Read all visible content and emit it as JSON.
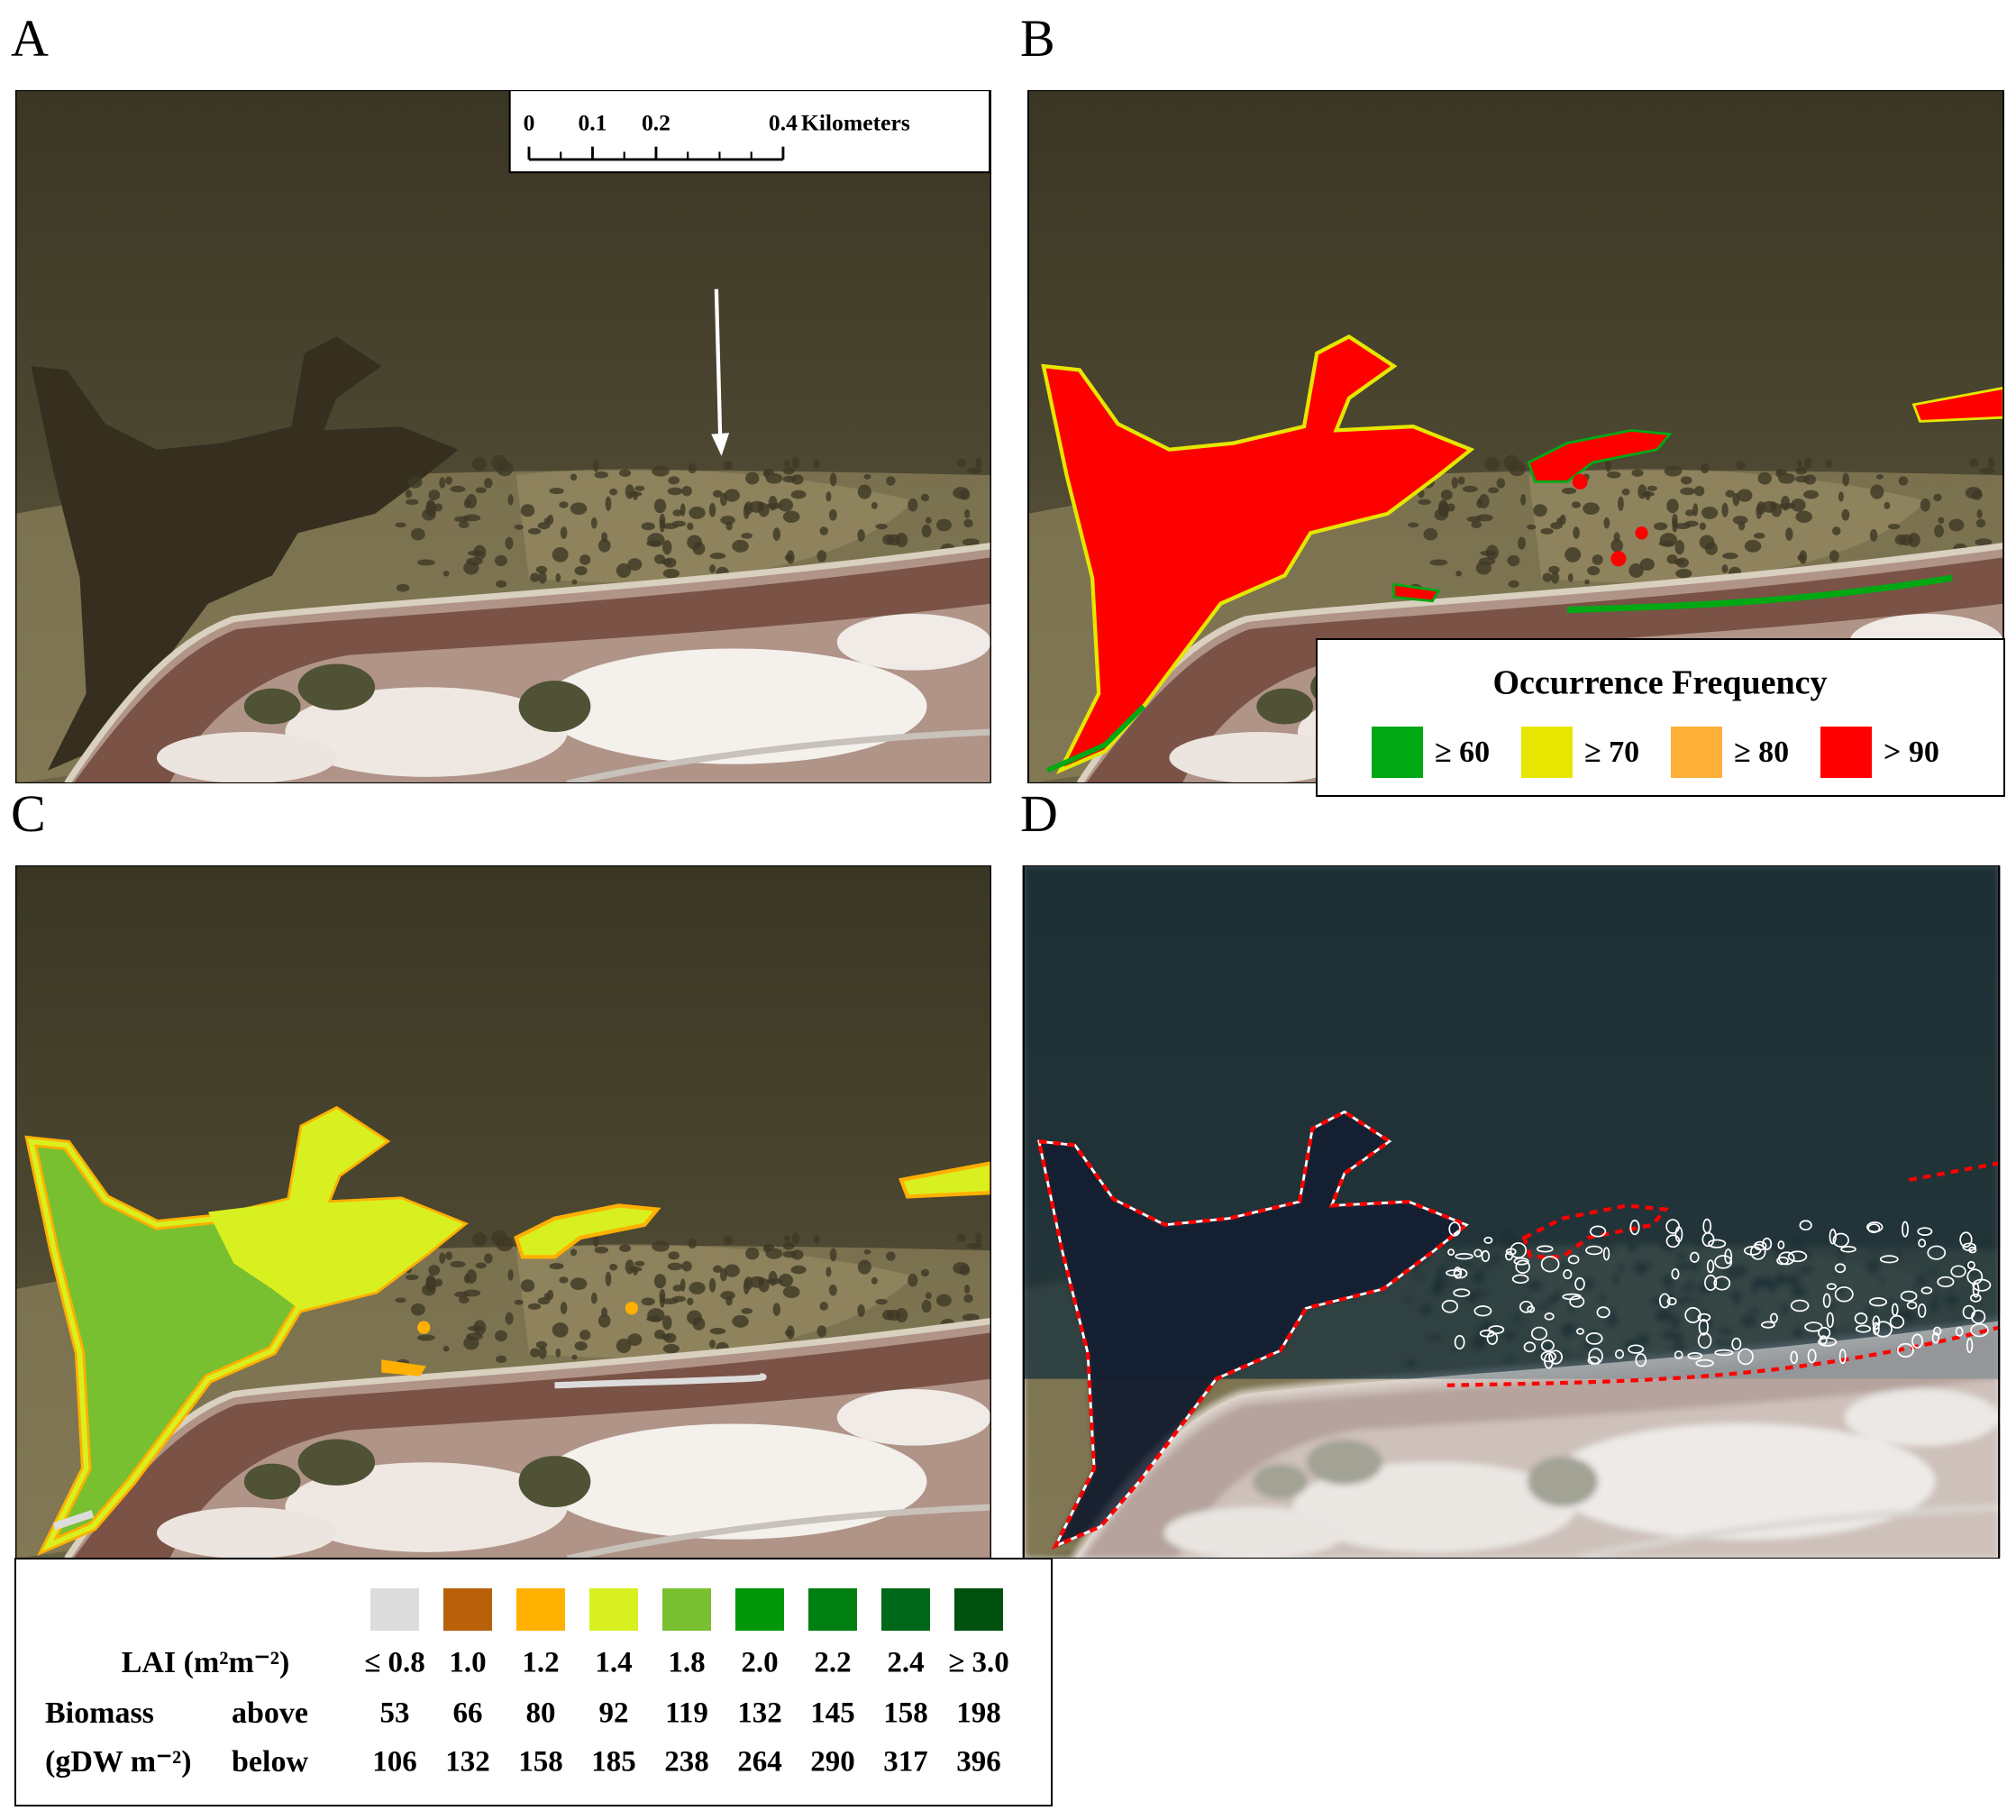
{
  "panels": [
    {
      "label": "A"
    },
    {
      "label": "B"
    },
    {
      "label": "C"
    },
    {
      "label": "D"
    }
  ],
  "scale_bar": {
    "ticks": [
      0,
      0.1,
      0.2,
      0.4
    ],
    "unit": "Kilometers"
  },
  "occurrence_legend": {
    "title": "Occurrence Frequency",
    "items": [
      {
        "label": "≥ 60",
        "color": "#00a814"
      },
      {
        "label": "≥ 70",
        "color": "#e6e600"
      },
      {
        "label": "≥ 80",
        "color": "#ffb038"
      },
      {
        "label": "> 90",
        "color": "#ff0000"
      }
    ]
  },
  "lai_legend": {
    "lai_label": "LAI  (m²m⁻²)",
    "biomass_label": "Biomass",
    "biomass_unit": "(gDW m⁻²)",
    "above_label": "above",
    "below_label": "below",
    "classes": [
      {
        "color": "#dcdcdc",
        "lai": "≤ 0.8",
        "above": 53,
        "below": 106
      },
      {
        "color": "#b8600a",
        "lai": "1.0",
        "above": 66,
        "below": 132
      },
      {
        "color": "#ffb000",
        "lai": "1.2",
        "above": 80,
        "below": 158
      },
      {
        "color": "#d8f020",
        "lai": "1.4",
        "above": 92,
        "below": 185
      },
      {
        "color": "#78c030",
        "lai": "1.8",
        "above": 119,
        "below": 238
      },
      {
        "color": "#00960a",
        "lai": "2.0",
        "above": 132,
        "below": 264
      },
      {
        "color": "#008010",
        "lai": "2.2",
        "above": 145,
        "below": 290
      },
      {
        "color": "#006818",
        "lai": "2.4",
        "above": 158,
        "below": 317
      },
      {
        "color": "#005010",
        "lai": "≥ 3.0",
        "above": 198,
        "below": 396
      }
    ]
  }
}
